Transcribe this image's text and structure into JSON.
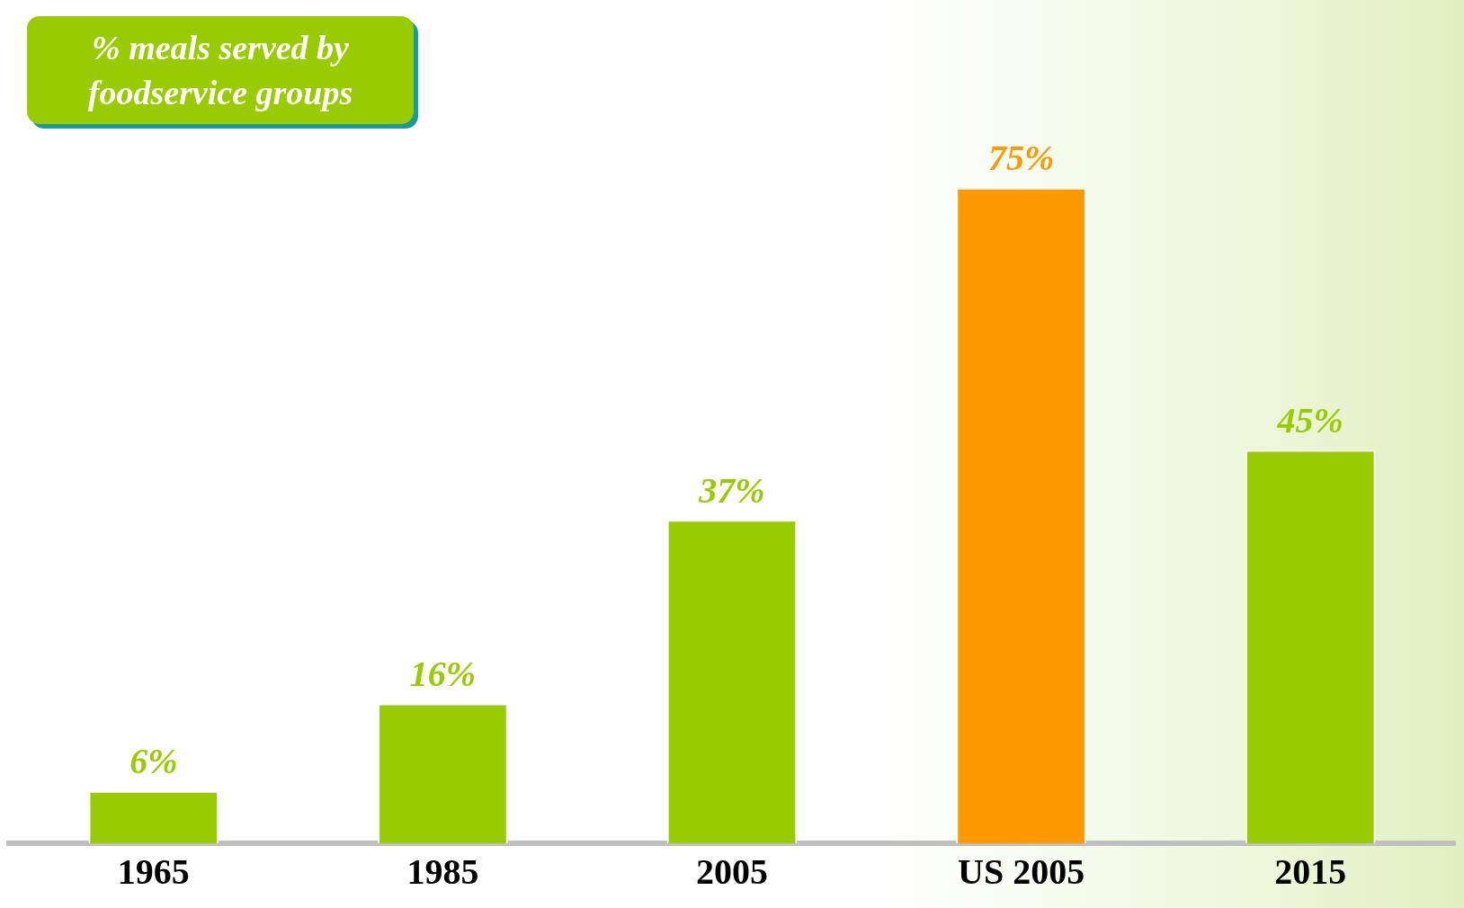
{
  "chart_data": {
    "type": "bar",
    "title": "% meals served by foodservice groups",
    "categories": [
      "1965",
      "1985",
      "2005",
      "US 2005",
      "2015"
    ],
    "values": [
      6,
      16,
      37,
      75,
      45
    ],
    "colors": [
      "#99cc00",
      "#99cc00",
      "#99cc00",
      "#ff9900",
      "#99cc00"
    ],
    "value_labels": [
      "6%",
      "16%",
      "37%",
      "75%",
      "45%"
    ],
    "grid": false,
    "legend": false
  }
}
